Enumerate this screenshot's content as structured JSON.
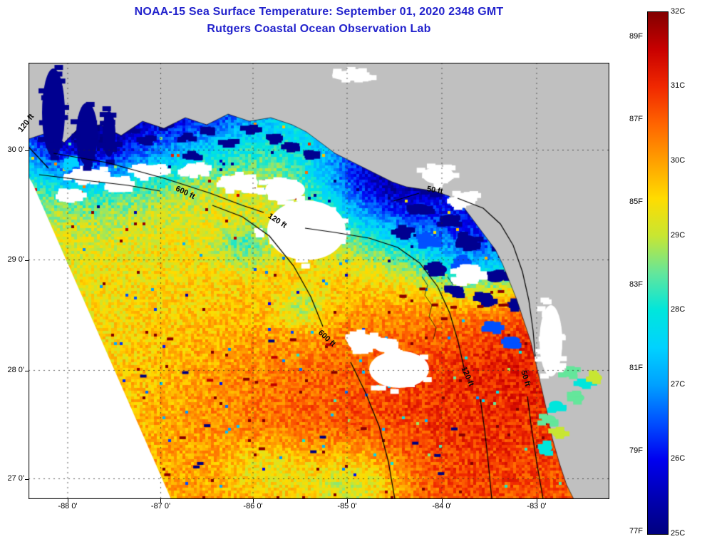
{
  "title": {
    "line1": "NOAA-15 Sea Surface Temperature:  September 01, 2020 2348 GMT",
    "line2": "Rutgers Coastal Ocean Observation Lab"
  },
  "axes": {
    "xticks": [
      "-88 0'",
      "-87 0'",
      "-86 0'",
      "-85 0'",
      "-84 0'",
      "-83 0'"
    ],
    "yticks": [
      "30 0'",
      "29 0'",
      "28 0'",
      "27 0'"
    ]
  },
  "contours": {
    "labels": [
      "120 ft",
      "600 ft",
      "120 ft",
      "50 ft",
      "600 ft",
      "120 ft",
      "50 ft"
    ]
  },
  "colorbar": {
    "celsius": [
      "32C",
      "31C",
      "30C",
      "29C",
      "28C",
      "27C",
      "26C",
      "25C"
    ],
    "fahrenheit": [
      "89F",
      "87F",
      "85F",
      "83F",
      "81F",
      "79F",
      "77F"
    ],
    "stops_top_to_bottom": [
      "#820000",
      "#c80000",
      "#f02800",
      "#ff6400",
      "#ffa000",
      "#ffdc00",
      "#c8e632",
      "#64e69b",
      "#00e6dc",
      "#00d2ff",
      "#00a0ff",
      "#0050ff",
      "#0000f0",
      "#0000b4",
      "#000080"
    ]
  },
  "map": {
    "land_color": "#c0c0c0",
    "no_data_color": "#ffffff",
    "title_color": "#2222cc"
  }
}
